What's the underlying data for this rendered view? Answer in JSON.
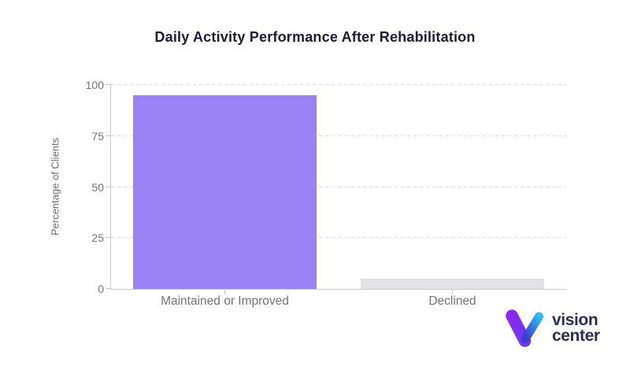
{
  "chart_data": {
    "type": "bar",
    "title": "Daily Activity Performance After Rehabilitation",
    "xlabel": "",
    "ylabel": "Percentage of Clients",
    "categories": [
      "Maintained or Improved",
      "Declined"
    ],
    "values": [
      95,
      5
    ],
    "bar_colors": [
      "#9a83f4",
      "#e2e1e6"
    ],
    "yticks": [
      0,
      25,
      50,
      75,
      100
    ],
    "ylim": [
      0,
      100
    ],
    "grid": "horizontal dashed",
    "legend": "none"
  },
  "colors": {
    "title": "#1d1b36",
    "axis_line": "#c9c9d6",
    "grid_line": "#d9d9de",
    "tick_label": "#73737c",
    "axis_title": "#6e6e77"
  },
  "logo": {
    "line1": "vision",
    "line2": "center",
    "text_color": "#2f2c55",
    "mark_colors": {
      "left_top": "#8c2af2",
      "left_bottom": "#7134ef",
      "right_top": "#2abdf3",
      "right_bottom": "#4038d2"
    }
  }
}
